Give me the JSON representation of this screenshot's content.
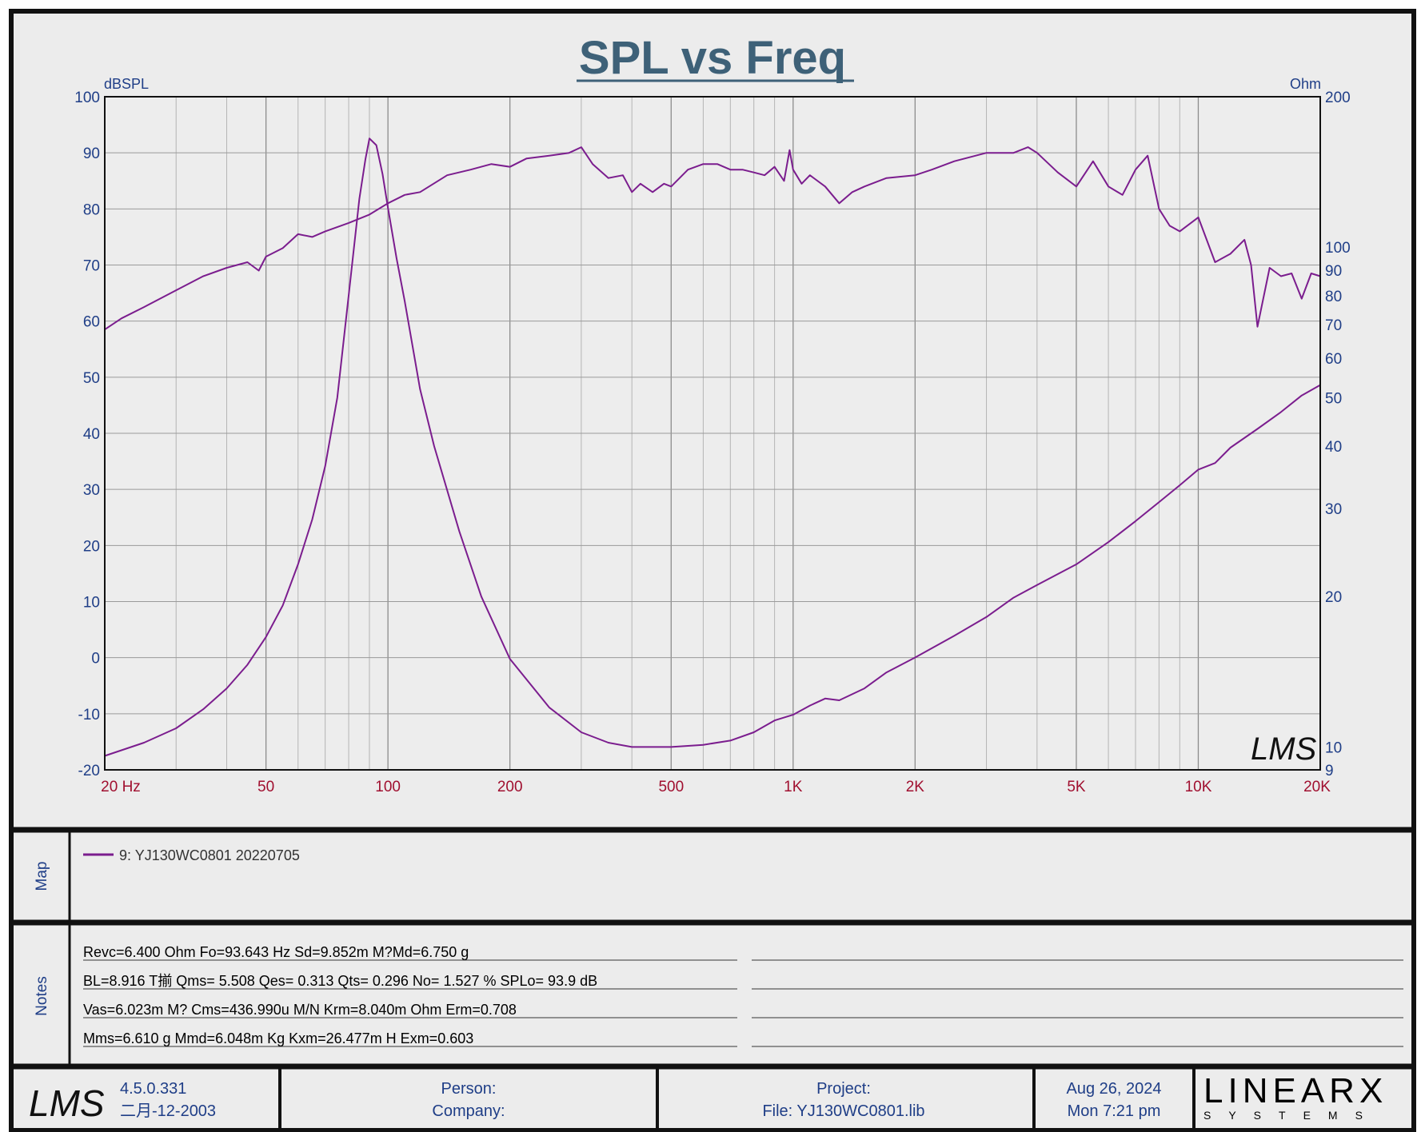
{
  "chart_data": {
    "type": "line",
    "title": "SPL vs Freq",
    "y_left_label": "dBSPL",
    "y_right_label": "Ohm",
    "x_scale": "log",
    "xlim": [
      20,
      20000
    ],
    "ylim_left": [
      -20,
      100
    ],
    "ylim_right": [
      9,
      200
    ],
    "y_right_scale": "log",
    "grid": true,
    "x_ticks": [
      {
        "value": 20,
        "label": "20  Hz"
      },
      {
        "value": 50,
        "label": "50"
      },
      {
        "value": 100,
        "label": "100"
      },
      {
        "value": 200,
        "label": "200"
      },
      {
        "value": 500,
        "label": "500"
      },
      {
        "value": 1000,
        "label": "1K"
      },
      {
        "value": 2000,
        "label": "2K"
      },
      {
        "value": 5000,
        "label": "5K"
      },
      {
        "value": 10000,
        "label": "10K"
      },
      {
        "value": 20000,
        "label": "20K"
      }
    ],
    "y_left_ticks": [
      100,
      90,
      80,
      70,
      60,
      50,
      40,
      30,
      20,
      10,
      0,
      -10,
      -20
    ],
    "y_right_ticks": [
      200,
      100,
      90,
      80,
      70,
      60,
      50,
      40,
      30,
      20,
      10,
      9
    ],
    "series": [
      {
        "name": "9: YJ130WC0801 20220705",
        "color": "#7b1d8e",
        "axis": "left",
        "x": [
          20,
          22,
          25,
          30,
          35,
          40,
          45,
          48,
          50,
          55,
          60,
          65,
          70,
          80,
          90,
          100,
          110,
          120,
          140,
          160,
          180,
          200,
          220,
          250,
          280,
          300,
          320,
          350,
          380,
          400,
          420,
          450,
          480,
          500,
          550,
          600,
          650,
          700,
          750,
          800,
          850,
          900,
          950,
          980,
          1000,
          1050,
          1100,
          1200,
          1300,
          1400,
          1500,
          1700,
          2000,
          2200,
          2500,
          3000,
          3500,
          3800,
          4000,
          4500,
          5000,
          5500,
          6000,
          6500,
          7000,
          7500,
          8000,
          8500,
          9000,
          10000,
          11000,
          12000,
          13000,
          13500,
          14000,
          15000,
          16000,
          17000,
          18000,
          19000,
          20000
        ],
        "y": [
          58.5,
          60.5,
          62.5,
          65.5,
          68,
          69.5,
          70.5,
          69,
          71.5,
          73,
          75.5,
          75,
          76,
          77.5,
          79,
          81,
          82.5,
          83,
          86,
          87,
          88,
          87.5,
          89,
          89.5,
          90,
          91,
          88,
          85.5,
          86,
          83,
          84.5,
          83,
          84.5,
          84,
          87,
          88,
          88,
          87,
          87,
          86.5,
          86,
          87.5,
          85,
          90.5,
          87,
          84.5,
          86,
          84,
          81,
          83,
          84,
          85.5,
          86,
          87,
          88.5,
          90,
          90,
          91,
          90,
          86.5,
          84,
          88.5,
          84,
          82.5,
          87,
          89.5,
          80,
          77,
          76,
          78.5,
          70.5,
          72,
          74.5,
          70,
          59,
          69.5,
          68,
          68.5,
          64,
          68.5,
          68
        ]
      },
      {
        "name": "",
        "color": "#7b1d8e",
        "axis": "right",
        "x": [
          20,
          25,
          30,
          35,
          40,
          45,
          50,
          55,
          60,
          65,
          70,
          75,
          80,
          85,
          88,
          90,
          93.6,
          97,
          100,
          105,
          110,
          120,
          130,
          150,
          170,
          200,
          250,
          300,
          350,
          400,
          450,
          500,
          600,
          700,
          800,
          900,
          1000,
          1100,
          1200,
          1300,
          1500,
          1700,
          2000,
          2500,
          3000,
          3500,
          4000,
          5000,
          6000,
          7000,
          8000,
          9000,
          10000,
          11000,
          12000,
          14000,
          16000,
          18000,
          20000
        ],
        "y": [
          9.6,
          10.2,
          10.9,
          11.9,
          13.1,
          14.6,
          16.6,
          19.2,
          23.2,
          28.5,
          36.5,
          50,
          80,
          125,
          150,
          165,
          160,
          140,
          120,
          95,
          78,
          52,
          40,
          27,
          20,
          15,
          12,
          10.7,
          10.2,
          10,
          10,
          10,
          10.1,
          10.3,
          10.7,
          11.3,
          11.6,
          12.1,
          12.5,
          12.4,
          13.1,
          14.1,
          15.1,
          16.7,
          18.2,
          19.9,
          21.1,
          23.2,
          25.7,
          28.3,
          30.9,
          33.4,
          35.9,
          37,
          39.7,
          43.3,
          46.8,
          50.5,
          53
        ]
      }
    ],
    "legend": [
      "9: YJ130WC0801 20220705"
    ],
    "legend_position": "map-panel"
  },
  "map": {
    "label": "Map",
    "legend_entry": "9: YJ130WC0801 20220705"
  },
  "notes": {
    "label": "Notes",
    "lines": [
      "Revc=6.400 Ohm  Fo=93.643 Hz  Sd=9.852m M?Md=6.750 g",
      "BL=8.916 T揃  Qms= 5.508  Qes= 0.313  Qts= 0.296  No= 1.527 %  SPLo= 93.9 dB",
      "Vas=6.023m M? Cms=436.990u M/N  Krm=8.040m Ohm  Erm=0.708",
      "Mms=6.610 g  Mmd=6.048m Kg  Kxm=26.477m H  Exm=0.603"
    ]
  },
  "footer": {
    "logo": "LMS",
    "version": "4.5.0.331",
    "build_date": "二月-12-2003",
    "person_label": "Person:",
    "company_label": "Company:",
    "project_label": "Project:",
    "file_label": "File: YJ130WC0801.lib",
    "date": "Aug 26, 2024",
    "time": "Mon  7:21 pm",
    "brand": "LINEARX",
    "brand_sub": "SYSTEMS"
  },
  "watermark": "LMS",
  "colors": {
    "background": "#ececec",
    "frame": "#111111",
    "curve": "#7b1d8e",
    "grid": "#9a9a9a",
    "axis_text": "#1f3e87",
    "x_text": "#a00f2f",
    "title": "#3e6178"
  }
}
